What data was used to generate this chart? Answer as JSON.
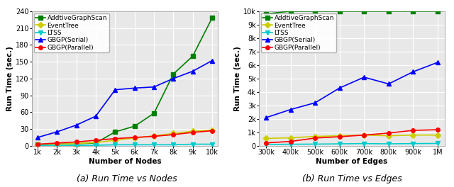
{
  "plot1": {
    "xlabel": "Number of Nodes",
    "ylabel": "Run Time (sec.)",
    "xtick_labels": [
      "1k",
      "2k",
      "3k",
      "4k",
      "5k",
      "6k",
      "7k",
      "8k",
      "9k",
      "10k"
    ],
    "xtick_vals": [
      1000,
      2000,
      3000,
      4000,
      5000,
      6000,
      7000,
      8000,
      9000,
      10000
    ],
    "ylim": [
      0,
      240
    ],
    "yticks": [
      0,
      30,
      60,
      90,
      120,
      150,
      180,
      210,
      240
    ],
    "series": {
      "AddtiveGraphScan": {
        "x": [
          1000,
          2000,
          3000,
          4000,
          5000,
          6000,
          7000,
          8000,
          9000,
          10000
        ],
        "y": [
          2,
          3,
          4,
          5,
          25,
          35,
          58,
          128,
          160,
          228
        ],
        "color": "#008000",
        "marker": "s",
        "linestyle": "-"
      },
      "EventTree": {
        "x": [
          1000,
          2000,
          3000,
          4000,
          5000,
          6000,
          7000,
          8000,
          9000,
          10000
        ],
        "y": [
          2,
          3,
          4,
          6,
          10,
          14,
          18,
          22,
          26,
          28
        ],
        "color": "#cccc00",
        "marker": "D",
        "linestyle": "-"
      },
      "LTSS": {
        "x": [
          1000,
          2000,
          3000,
          4000,
          5000,
          6000,
          7000,
          8000,
          9000,
          10000
        ],
        "y": [
          1,
          1,
          1,
          1,
          2,
          2,
          2,
          2,
          3,
          3
        ],
        "color": "#00cccc",
        "marker": "v",
        "linestyle": "-"
      },
      "GBGP(Serial)": {
        "x": [
          1000,
          2000,
          3000,
          4000,
          5000,
          6000,
          7000,
          8000,
          9000,
          10000
        ],
        "y": [
          15,
          25,
          37,
          53,
          100,
          103,
          105,
          120,
          133,
          152
        ],
        "color": "#0000ff",
        "marker": "^",
        "linestyle": "-"
      },
      "GBGP(Parallel)": {
        "x": [
          1000,
          2000,
          3000,
          4000,
          5000,
          6000,
          7000,
          8000,
          9000,
          10000
        ],
        "y": [
          3,
          5,
          7,
          10,
          13,
          15,
          17,
          20,
          24,
          27
        ],
        "color": "#ff0000",
        "marker": "o",
        "linestyle": "-"
      }
    },
    "caption": "(a) Run Time vs Nodes"
  },
  "plot2": {
    "xlabel": "Number of Edges",
    "ylabel": "Run Time (sec.)",
    "xtick_labels": [
      "300k",
      "400k",
      "500k",
      "600k",
      "700k",
      "800k",
      "900k",
      "1M"
    ],
    "xtick_vals": [
      300000,
      400000,
      500000,
      600000,
      700000,
      800000,
      900000,
      1000000
    ],
    "ylim": [
      0,
      10000
    ],
    "ytick_labels": [
      "0",
      "1k",
      "2k",
      "3k",
      "4k",
      "5k",
      "6k",
      "7k",
      "8k",
      "9k",
      "10k"
    ],
    "yticks": [
      0,
      1000,
      2000,
      3000,
      4000,
      5000,
      6000,
      7000,
      8000,
      9000,
      10000
    ],
    "series": {
      "AddtiveGraphScan": {
        "x": [
          300000,
          400000,
          500000,
          600000,
          700000,
          800000,
          900000,
          1000000
        ],
        "y": [
          9800,
          10000,
          10000,
          10000,
          10000,
          10000,
          10000,
          10000
        ],
        "color": "#008000",
        "marker": "s",
        "linestyle": "-"
      },
      "EventTree": {
        "x": [
          300000,
          400000,
          500000,
          600000,
          700000,
          800000,
          900000,
          1000000
        ],
        "y": [
          550,
          600,
          700,
          750,
          800,
          750,
          800,
          800
        ],
        "color": "#cccc00",
        "marker": "D",
        "linestyle": "-"
      },
      "LTSS": {
        "x": [
          300000,
          400000,
          500000,
          600000,
          700000,
          800000,
          900000,
          1000000
        ],
        "y": [
          100,
          120,
          130,
          150,
          170,
          150,
          170,
          180
        ],
        "color": "#00cccc",
        "marker": "v",
        "linestyle": "-"
      },
      "GBGP(Serial)": {
        "x": [
          300000,
          400000,
          500000,
          600000,
          700000,
          800000,
          900000,
          1000000
        ],
        "y": [
          2100,
          2700,
          3200,
          4300,
          5100,
          4600,
          5500,
          6200
        ],
        "color": "#0000ff",
        "marker": "^",
        "linestyle": "-"
      },
      "GBGP(Parallel)": {
        "x": [
          300000,
          400000,
          500000,
          600000,
          700000,
          800000,
          900000,
          1000000
        ],
        "y": [
          220,
          330,
          580,
          680,
          800,
          950,
          1150,
          1200
        ],
        "color": "#ff0000",
        "marker": "o",
        "linestyle": "-"
      }
    },
    "caption": "(b) Run Time vs Edges"
  },
  "legend_order": [
    "AddtiveGraphScan",
    "EventTree",
    "LTSS",
    "GBGP(Serial)",
    "GBGP(Parallel)"
  ],
  "background_color": "#e8e8e8",
  "grid_color": "white",
  "label_fontsize": 7.5,
  "tick_fontsize": 7,
  "legend_fontsize": 6.5,
  "caption_fontsize": 9,
  "marker_size": 4,
  "linewidth": 1.2
}
